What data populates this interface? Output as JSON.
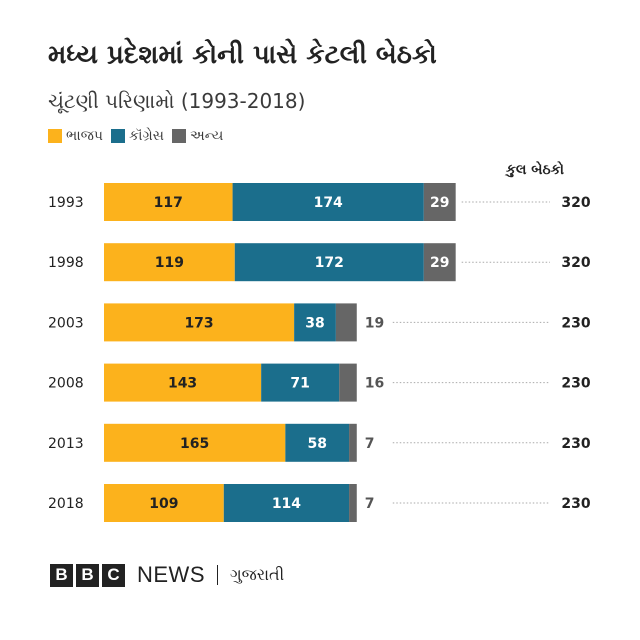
{
  "title": "મધ્ય પ્રદેશમાં કોની પાસે કેટલી બેઠકો",
  "subtitle": "ચૂંટણી પરિણામો (1993-2018)",
  "legend": [
    {
      "label": "ભાજપ",
      "color": "#fcb21c"
    },
    {
      "label": "કૉંગ્રેસ",
      "color": "#1b6e8c"
    },
    {
      "label": "અન્ય",
      "color": "#666666"
    }
  ],
  "total_header": "કુલ બેઠકો",
  "colors": {
    "bjp": "#fcb21c",
    "congress": "#1b6e8c",
    "other": "#666666",
    "dotted": "#aaaaaa"
  },
  "footer": {
    "blocks": [
      "B",
      "B",
      "C"
    ],
    "news": "NEWS",
    "service": "ગુજરાતી"
  },
  "chart_data": {
    "type": "bar",
    "orientation": "horizontal",
    "stacked": true,
    "title": "મધ્ય પ્રદેશમાં કોની પાસે કેટલી બેઠકો",
    "subtitle": "ચૂંટણી પરિણામો (1993-2018)",
    "categories": [
      "1993",
      "1998",
      "2003",
      "2008",
      "2013",
      "2018"
    ],
    "series": [
      {
        "name": "ભાજપ",
        "values": [
          117,
          119,
          173,
          143,
          165,
          109
        ]
      },
      {
        "name": "કૉંગ્રેસ",
        "values": [
          174,
          172,
          38,
          71,
          58,
          114
        ]
      },
      {
        "name": "અન્ય",
        "values": [
          29,
          29,
          19,
          16,
          7,
          7
        ]
      }
    ],
    "totals_label": "કુલ બેઠકો",
    "totals": [
      320,
      320,
      230,
      230,
      230,
      230
    ],
    "xlim": [
      0,
      320
    ],
    "legend_position": "top-left",
    "grid": false
  }
}
